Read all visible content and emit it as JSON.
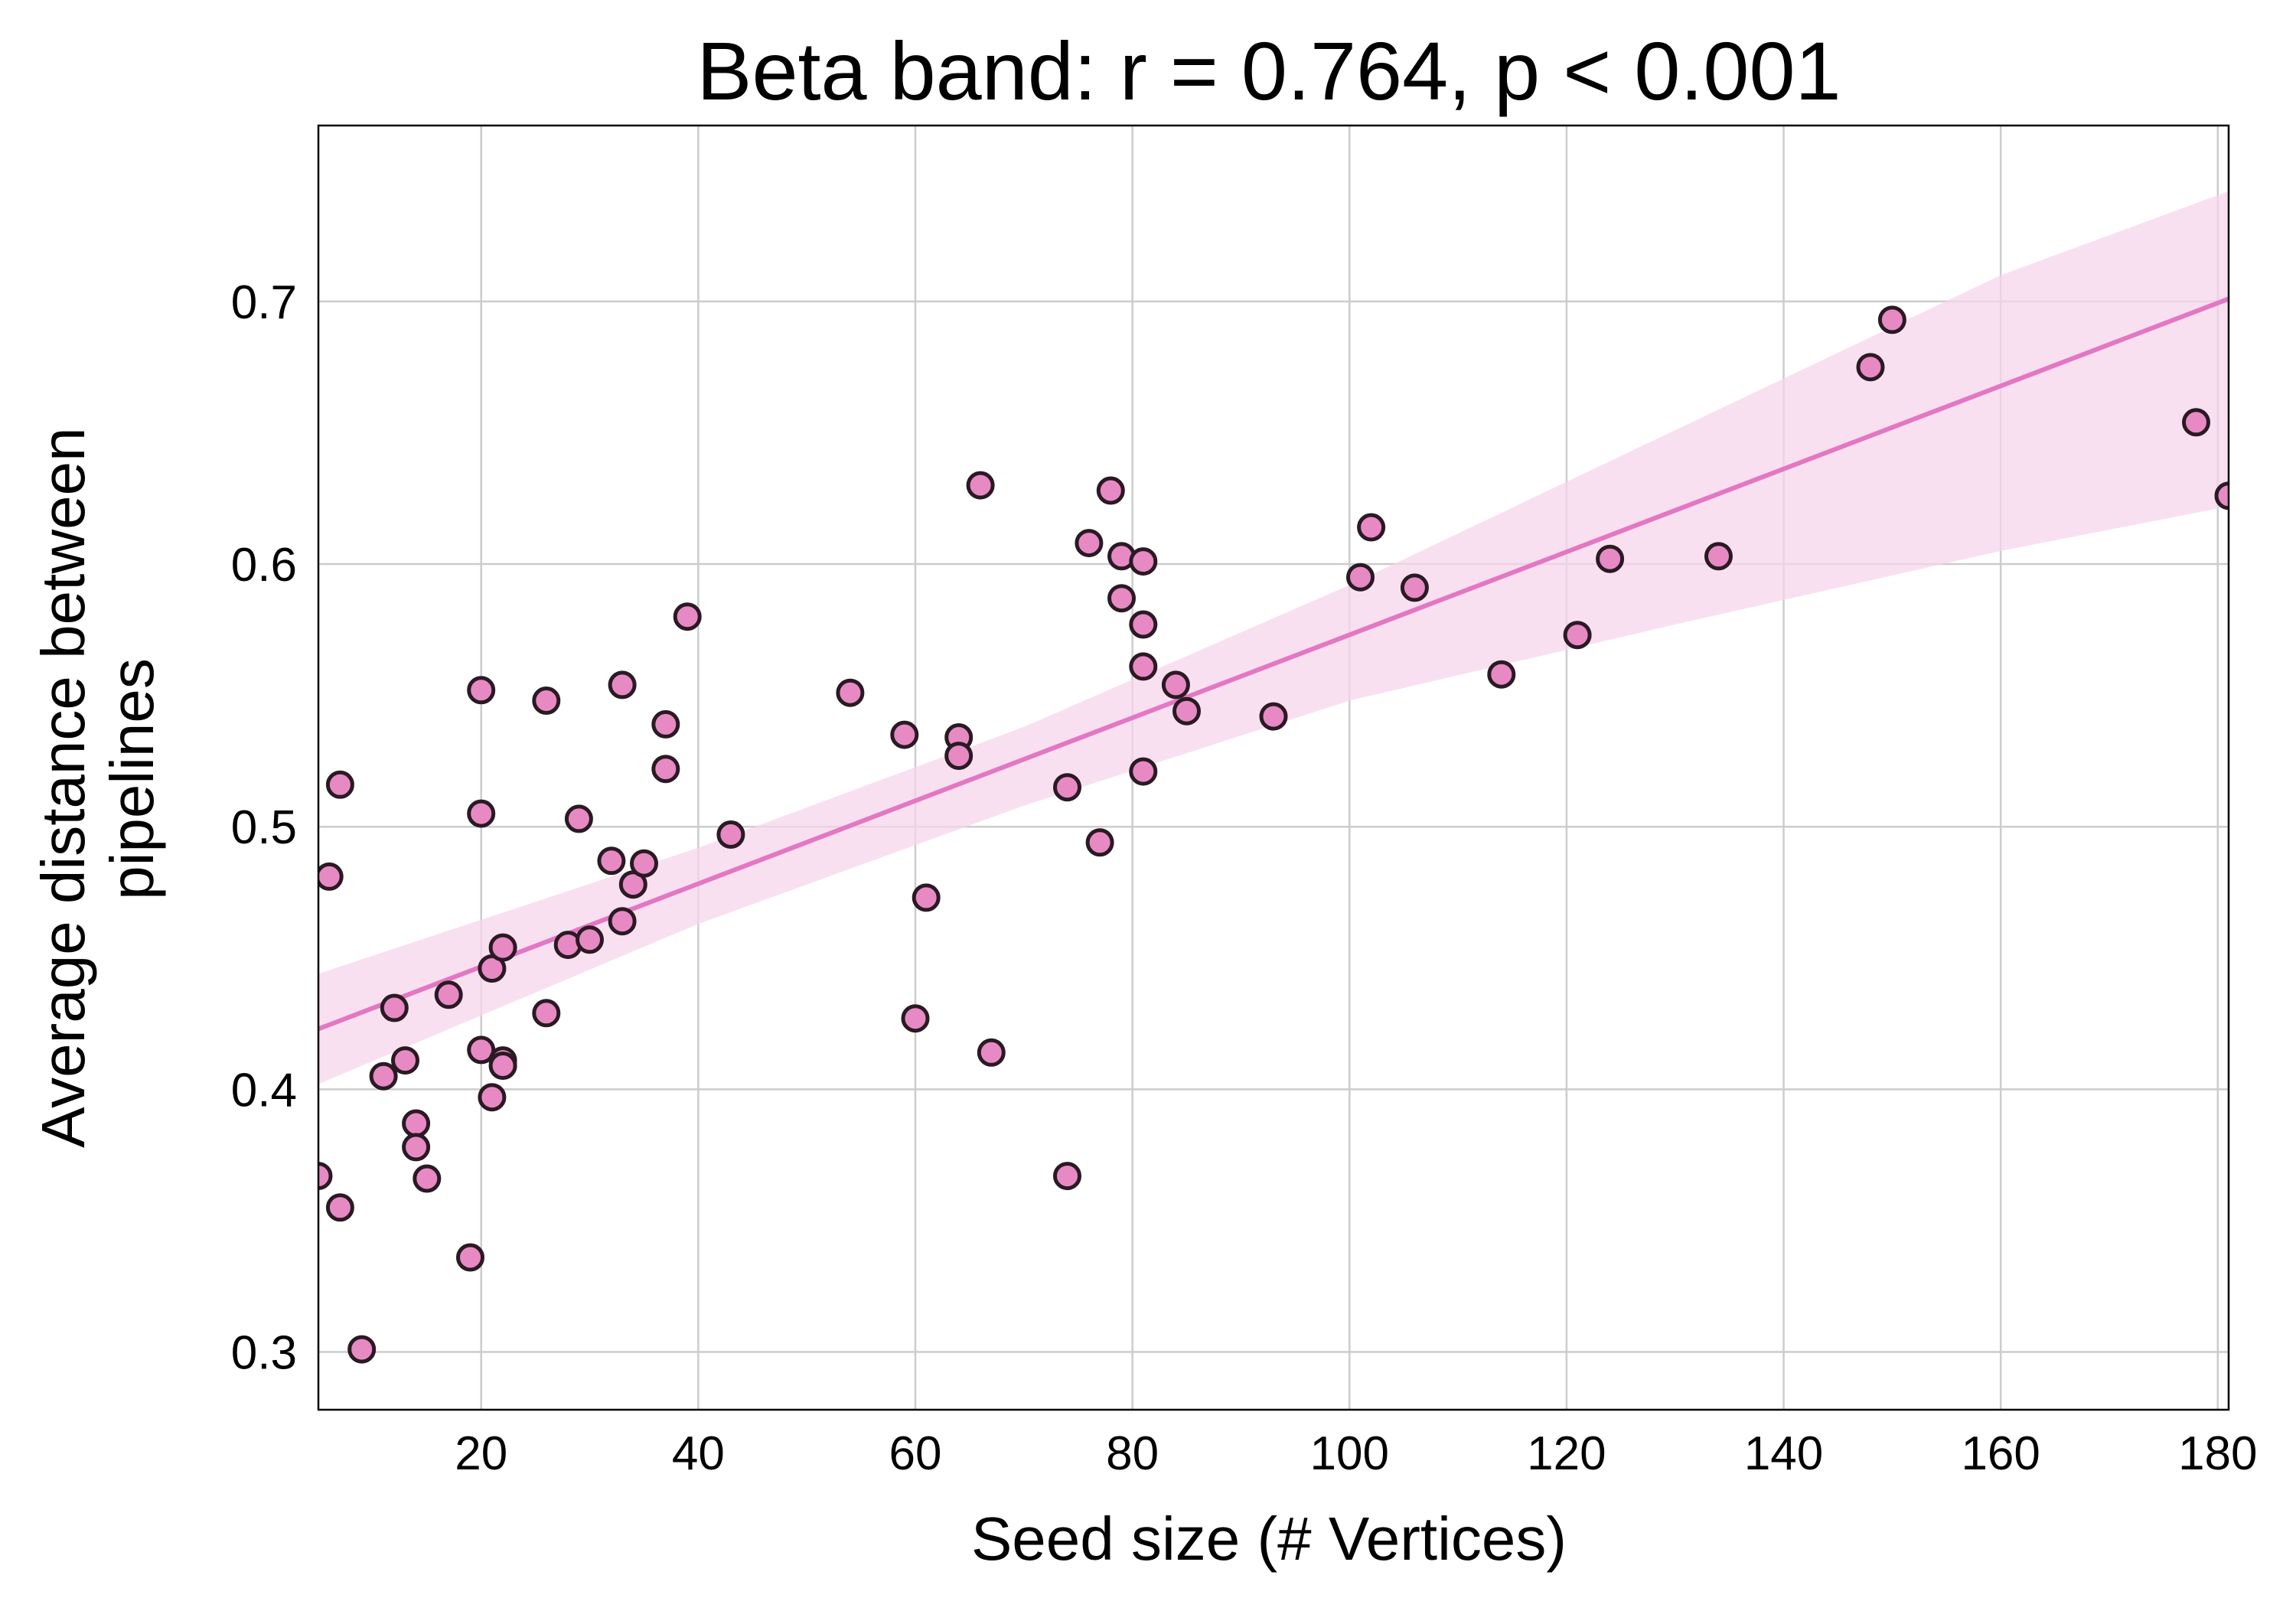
{
  "chart_data": {
    "type": "scatter",
    "title": "Beta band: r = 0.764, p < 0.001",
    "xlabel": "Seed size (# Vertices)",
    "ylabel_lines": [
      "Average distance between",
      "pipelines"
    ],
    "xlim": [
      5,
      181
    ],
    "ylim": [
      0.278,
      0.767
    ],
    "x_ticks": [
      20,
      40,
      60,
      80,
      100,
      120,
      140,
      160,
      180
    ],
    "y_ticks": [
      0.3,
      0.4,
      0.5,
      0.6,
      0.7
    ],
    "grid": true,
    "legend": "none",
    "colors": {
      "marker_fill": "#e78ac3",
      "marker_edge": "#2a1a24",
      "regression_line": "#e377c2",
      "confidence_band": "#f7d6ec",
      "grid": "#cccccc"
    },
    "points": {
      "x": [
        5,
        6,
        7,
        7,
        9,
        11,
        12,
        13,
        14,
        14,
        15,
        17,
        19,
        20,
        20,
        20,
        21,
        21,
        22,
        22,
        22,
        26,
        26,
        28,
        29,
        30,
        32,
        33,
        33,
        34,
        35,
        37,
        37,
        39,
        43,
        54,
        59,
        60,
        61,
        64,
        64,
        66,
        67,
        74,
        74,
        76,
        77,
        78,
        79,
        79,
        81,
        81,
        81,
        81,
        84,
        85,
        93,
        101,
        102,
        106,
        114,
        121,
        124,
        134,
        148,
        150,
        178,
        181
      ],
      "y": [
        0.367,
        0.481,
        0.355,
        0.516,
        0.301,
        0.405,
        0.431,
        0.411,
        0.387,
        0.378,
        0.366,
        0.436,
        0.336,
        0.552,
        0.505,
        0.415,
        0.446,
        0.397,
        0.454,
        0.411,
        0.409,
        0.548,
        0.429,
        0.455,
        0.503,
        0.457,
        0.487,
        0.554,
        0.464,
        0.478,
        0.486,
        0.539,
        0.522,
        0.58,
        0.497,
        0.551,
        0.535,
        0.427,
        0.473,
        0.534,
        0.527,
        0.63,
        0.414,
        0.515,
        0.367,
        0.608,
        0.494,
        0.628,
        0.603,
        0.587,
        0.601,
        0.577,
        0.561,
        0.521,
        0.554,
        0.544,
        0.542,
        0.595,
        0.614,
        0.591,
        0.558,
        0.573,
        0.602,
        0.603,
        0.675,
        0.693,
        0.654,
        0.626
      ]
    },
    "regression": {
      "x": [
        5,
        181
      ],
      "y": [
        0.423,
        0.701
      ]
    },
    "confidence_band": {
      "x": [
        5,
        40,
        70,
        100,
        130,
        160,
        181
      ],
      "lower": [
        0.402,
        0.463,
        0.508,
        0.548,
        0.577,
        0.605,
        0.622
      ],
      "upper": [
        0.444,
        0.492,
        0.538,
        0.592,
        0.651,
        0.71,
        0.742
      ]
    }
  }
}
